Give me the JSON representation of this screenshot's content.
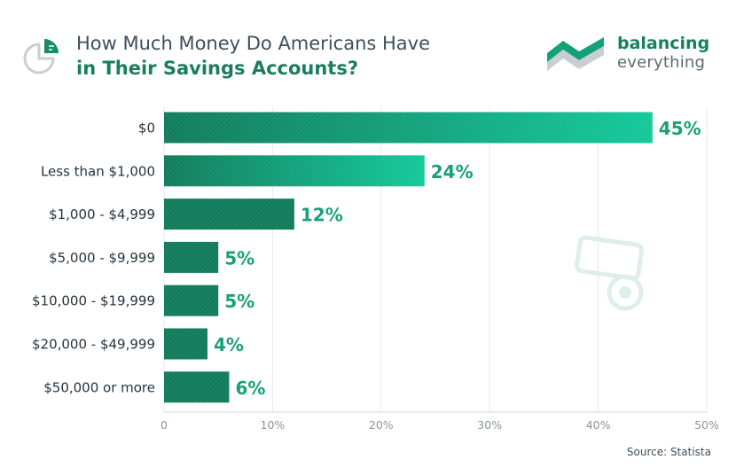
{
  "header": {
    "title_line1": "How Much Money Do Americans Have",
    "title_line2": "in Their Savings Accounts?"
  },
  "brand": {
    "name": "balancing",
    "tagline": "everything"
  },
  "source": "Source: Statista",
  "colors": {
    "bar_dark": "#127c5c",
    "bar_light": "#14c99a",
    "label": "#1aa077",
    "grid": "#e7e9ea",
    "axis_text": "#8a959c",
    "category_text": "#25343f"
  },
  "icons": {
    "header": "pie-chart-icon",
    "brand": "balancing-everything-logo-icon",
    "watermark": "money-watermark-icon"
  },
  "chart_data": {
    "type": "bar",
    "orientation": "horizontal",
    "categories": [
      "$0",
      "Less than $1,000",
      "$1,000 - $4,999",
      "$5,000 - $9,999",
      "$10,000 - $19,999",
      "$20,000 - $49,999",
      "$50,000 or more"
    ],
    "values": [
      45,
      24,
      12,
      5,
      5,
      4,
      6
    ],
    "value_labels": [
      "45%",
      "24%",
      "12%",
      "5%",
      "5%",
      "4%",
      "6%"
    ],
    "x_ticks": [
      "0",
      "10%",
      "20%",
      "30%",
      "40%",
      "50%"
    ],
    "xlim": [
      0,
      50
    ],
    "grid": true
  }
}
